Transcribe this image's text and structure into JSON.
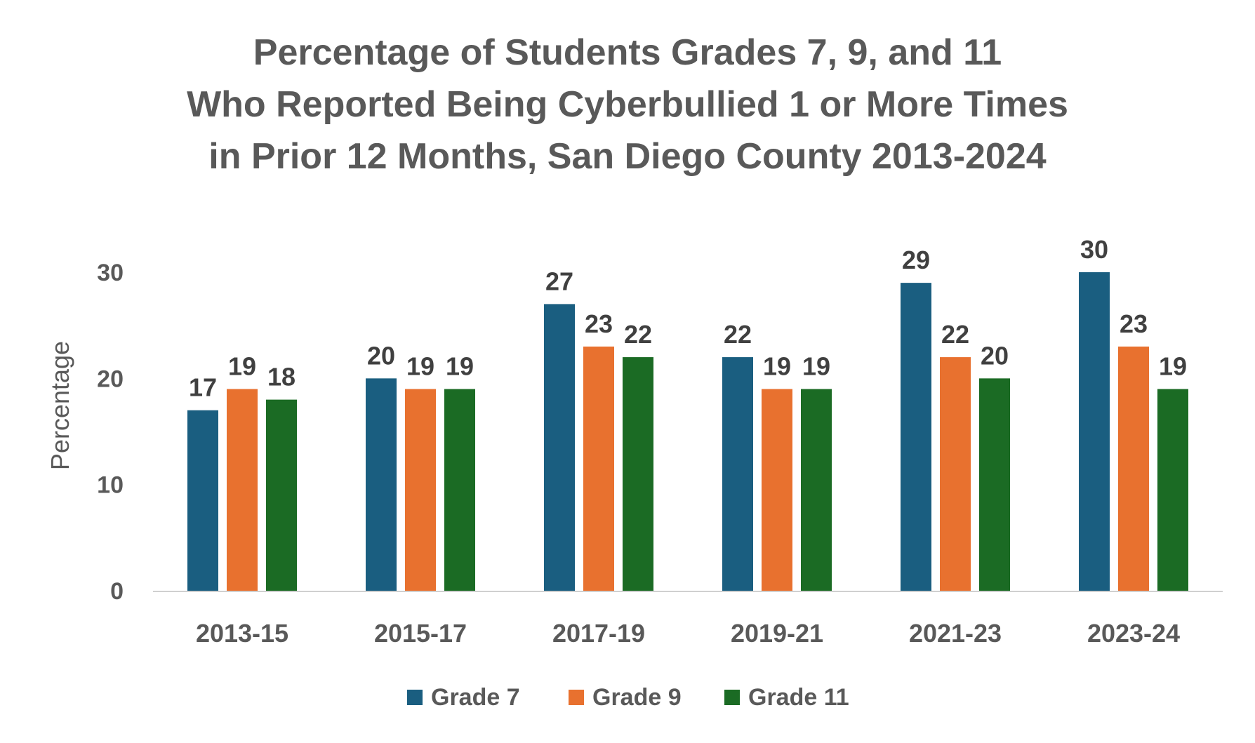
{
  "chart_data": {
    "type": "bar",
    "title_lines": [
      "Percentage of Students Grades 7, 9, and 11",
      "Who Reported Being Cyberbullied 1 or More Times",
      "in Prior 12 Months, San Diego County 2013-2024"
    ],
    "xlabel": "",
    "ylabel": "Percentage",
    "ylim": [
      0,
      30
    ],
    "yticks": [
      0,
      10,
      20,
      30
    ],
    "grid": false,
    "legend_position": "bottom",
    "categories": [
      "2013-15",
      "2015-17",
      "2017-19",
      "2019-21",
      "2021-23",
      "2023-24"
    ],
    "series": [
      {
        "name": "Grade 7",
        "color": "#1a5e80",
        "values": [
          17,
          20,
          27,
          22,
          29,
          30
        ]
      },
      {
        "name": "Grade 9",
        "color": "#e8712f",
        "values": [
          19,
          19,
          23,
          19,
          22,
          23
        ]
      },
      {
        "name": "Grade 11",
        "color": "#1b6b24",
        "values": [
          18,
          19,
          22,
          19,
          20,
          19
        ]
      }
    ]
  }
}
